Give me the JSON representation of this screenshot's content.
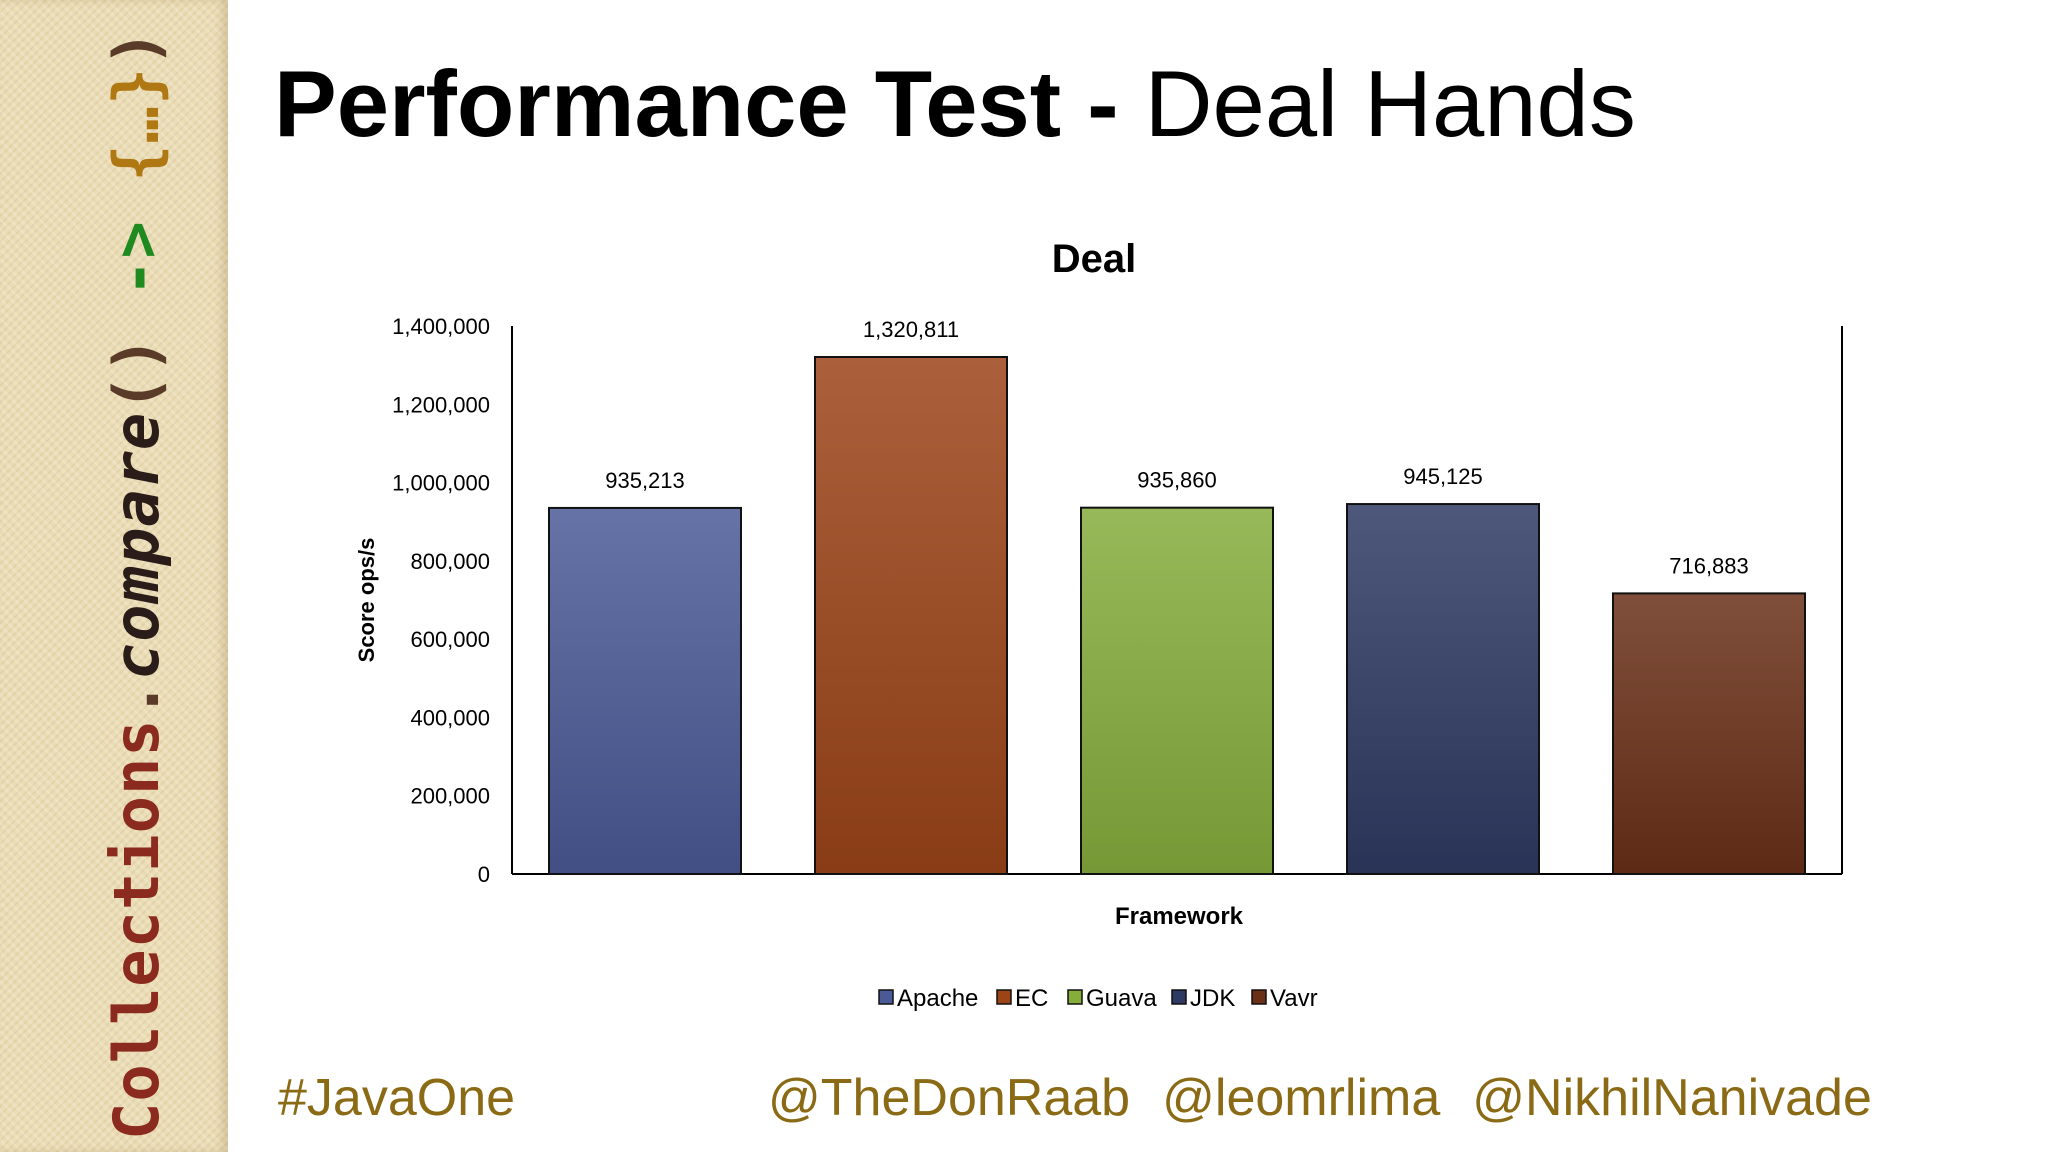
{
  "sidebar": {
    "parts": [
      "Collections",
      ".",
      "compare",
      "()",
      " -> ",
      "{…}",
      ")"
    ]
  },
  "slide": {
    "title_bold": "Performance Test",
    "title_sep": " - ",
    "title_light": "Deal Hands"
  },
  "footer": {
    "hashtag": "#JavaOne",
    "handles": [
      "@TheDonRaab",
      "@leomrlima",
      "@NikhilNanivade"
    ]
  },
  "colors": {
    "hashtag": "#8a6a14",
    "sidebar_bg": "#eadcb4"
  },
  "chart_data": {
    "type": "bar",
    "title": "Deal",
    "xlabel": "Framework",
    "ylabel": "Score ops/s",
    "ylim": [
      0,
      1400000
    ],
    "yticks": [
      0,
      200000,
      400000,
      600000,
      800000,
      1000000,
      1200000,
      1400000
    ],
    "ytick_labels": [
      "0",
      "200,000",
      "400,000",
      "600,000",
      "800,000",
      "1,000,000",
      "1,200,000",
      "1,400,000"
    ],
    "categories": [
      "Apache",
      "EC",
      "Guava",
      "JDK",
      "Vavr"
    ],
    "values": [
      935213,
      1320811,
      935860,
      945125,
      716883
    ],
    "value_labels": [
      "935,213",
      "1,320,811",
      "935,860",
      "945,125",
      "716,883"
    ],
    "colors": [
      "#4a5a96",
      "#9c4418",
      "#86ad3c",
      "#2f3a62",
      "#6a3018"
    ],
    "legend": "bottom",
    "grid": false
  }
}
